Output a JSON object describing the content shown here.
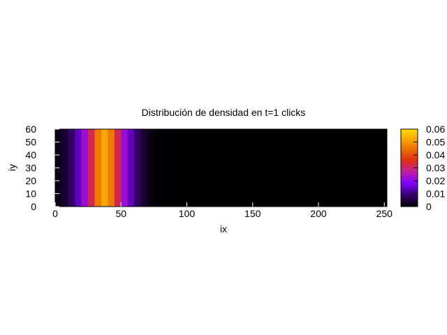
{
  "chart_data": {
    "type": "heatmap",
    "title": "Distribución de densidad en t=1 clicks",
    "xlabel": "ix",
    "ylabel": "iy",
    "xlim": [
      0,
      252
    ],
    "ylim": [
      0,
      60
    ],
    "xticks": [
      0,
      50,
      100,
      150,
      200,
      250
    ],
    "yticks": [
      0,
      10,
      20,
      30,
      40,
      50,
      60
    ],
    "colorbar": {
      "range": [
        0,
        0.06
      ],
      "ticks": [
        "0",
        "0.01",
        "0.02",
        "0.03",
        "0.04",
        "0.05",
        "0.06"
      ],
      "palette": "black-purple-red-orange-yellow"
    },
    "profile_note_x": "density varies along ix only, uniform along iy",
    "density_columns": {
      "x_start": 0,
      "x_step": 5,
      "values": [
        0.002,
        0.004,
        0.008,
        0.014,
        0.022,
        0.032,
        0.046,
        0.052,
        0.046,
        0.032,
        0.022,
        0.014,
        0.008,
        0.004,
        0.0015,
        0.0005,
        0.0002,
        0.0001
      ]
    }
  }
}
